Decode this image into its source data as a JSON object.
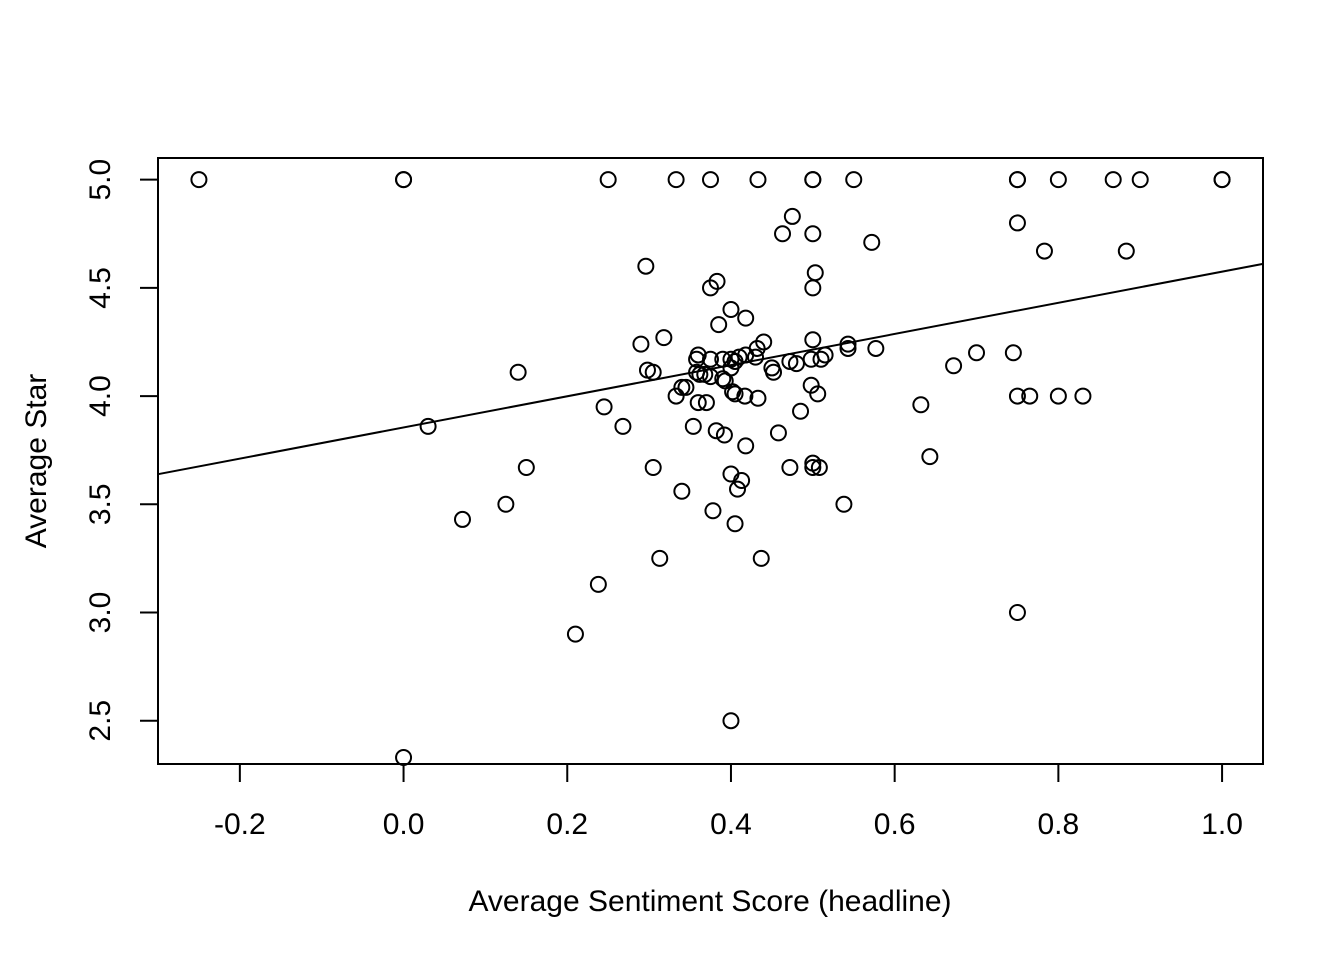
{
  "chart_data": {
    "type": "scatter",
    "title": "",
    "xlabel": "Average Sentiment Score (headline)",
    "ylabel": "Average Star",
    "xlim": [
      -0.3,
      1.05
    ],
    "ylim": [
      2.3,
      5.1
    ],
    "x_ticks": [
      -0.2,
      0.0,
      0.2,
      0.4,
      0.6,
      0.8,
      1.0
    ],
    "x_tick_labels": [
      "-0.2",
      "0.0",
      "0.2",
      "0.4",
      "0.6",
      "0.8",
      "1.0"
    ],
    "y_ticks": [
      2.5,
      3.0,
      3.5,
      4.0,
      4.5,
      5.0
    ],
    "y_tick_labels": [
      "2.5",
      "3.0",
      "3.5",
      "4.0",
      "4.5",
      "5.0"
    ],
    "grid": false,
    "legend": "none",
    "marker": "open-circle",
    "regression_line": {
      "intercept": 3.855,
      "slope": 0.72
    },
    "points": [
      [
        -0.25,
        5.0
      ],
      [
        0.0,
        5.0
      ],
      [
        0.0,
        5.0
      ],
      [
        0.25,
        5.0
      ],
      [
        0.333,
        5.0
      ],
      [
        0.375,
        5.0
      ],
      [
        0.433,
        5.0
      ],
      [
        0.5,
        5.0
      ],
      [
        0.5,
        5.0
      ],
      [
        0.55,
        5.0
      ],
      [
        0.75,
        5.0
      ],
      [
        0.75,
        5.0
      ],
      [
        0.8,
        5.0
      ],
      [
        0.867,
        5.0
      ],
      [
        0.9,
        5.0
      ],
      [
        1.0,
        5.0
      ],
      [
        1.0,
        5.0
      ],
      [
        0.475,
        4.83
      ],
      [
        0.75,
        4.8
      ],
      [
        0.463,
        4.75
      ],
      [
        0.5,
        4.75
      ],
      [
        0.572,
        4.71
      ],
      [
        0.783,
        4.67
      ],
      [
        0.883,
        4.67
      ],
      [
        0.296,
        4.6
      ],
      [
        0.503,
        4.57
      ],
      [
        0.383,
        4.53
      ],
      [
        0.375,
        4.5
      ],
      [
        0.5,
        4.5
      ],
      [
        0.4,
        4.4
      ],
      [
        0.418,
        4.36
      ],
      [
        0.385,
        4.33
      ],
      [
        0.318,
        4.27
      ],
      [
        0.5,
        4.26
      ],
      [
        0.29,
        4.24
      ],
      [
        0.44,
        4.25
      ],
      [
        0.543,
        4.24
      ],
      [
        0.432,
        4.22
      ],
      [
        0.543,
        4.22
      ],
      [
        0.577,
        4.22
      ],
      [
        0.7,
        4.2
      ],
      [
        0.745,
        4.2
      ],
      [
        0.36,
        4.19
      ],
      [
        0.418,
        4.19
      ],
      [
        0.515,
        4.19
      ],
      [
        0.41,
        4.18
      ],
      [
        0.43,
        4.18
      ],
      [
        0.358,
        4.17
      ],
      [
        0.375,
        4.17
      ],
      [
        0.39,
        4.17
      ],
      [
        0.4,
        4.17
      ],
      [
        0.498,
        4.17
      ],
      [
        0.51,
        4.17
      ],
      [
        0.405,
        4.16
      ],
      [
        0.472,
        4.16
      ],
      [
        0.48,
        4.15
      ],
      [
        0.672,
        4.14
      ],
      [
        0.4,
        4.13
      ],
      [
        0.45,
        4.13
      ],
      [
        0.298,
        4.12
      ],
      [
        0.14,
        4.11
      ],
      [
        0.305,
        4.11
      ],
      [
        0.358,
        4.11
      ],
      [
        0.362,
        4.1
      ],
      [
        0.452,
        4.11
      ],
      [
        0.368,
        4.1
      ],
      [
        0.375,
        4.09
      ],
      [
        0.39,
        4.08
      ],
      [
        0.393,
        4.07
      ],
      [
        0.34,
        4.04
      ],
      [
        0.345,
        4.04
      ],
      [
        0.498,
        4.05
      ],
      [
        0.402,
        4.02
      ],
      [
        0.405,
        4.01
      ],
      [
        0.506,
        4.01
      ],
      [
        0.333,
        4.0
      ],
      [
        0.417,
        4.0
      ],
      [
        0.75,
        4.0
      ],
      [
        0.765,
        4.0
      ],
      [
        0.8,
        4.0
      ],
      [
        0.83,
        4.0
      ],
      [
        0.433,
        3.99
      ],
      [
        0.36,
        3.97
      ],
      [
        0.37,
        3.97
      ],
      [
        0.632,
        3.96
      ],
      [
        0.245,
        3.95
      ],
      [
        0.485,
        3.93
      ],
      [
        0.03,
        3.86
      ],
      [
        0.268,
        3.86
      ],
      [
        0.354,
        3.86
      ],
      [
        0.382,
        3.84
      ],
      [
        0.458,
        3.83
      ],
      [
        0.392,
        3.82
      ],
      [
        0.418,
        3.77
      ],
      [
        0.643,
        3.72
      ],
      [
        0.5,
        3.69
      ],
      [
        0.15,
        3.67
      ],
      [
        0.305,
        3.67
      ],
      [
        0.472,
        3.67
      ],
      [
        0.5,
        3.67
      ],
      [
        0.508,
        3.67
      ],
      [
        0.4,
        3.64
      ],
      [
        0.413,
        3.61
      ],
      [
        0.408,
        3.57
      ],
      [
        0.34,
        3.56
      ],
      [
        0.125,
        3.5
      ],
      [
        0.538,
        3.5
      ],
      [
        0.378,
        3.47
      ],
      [
        0.072,
        3.43
      ],
      [
        0.405,
        3.41
      ],
      [
        0.313,
        3.25
      ],
      [
        0.437,
        3.25
      ],
      [
        0.238,
        3.13
      ],
      [
        0.75,
        3.0
      ],
      [
        0.21,
        2.9
      ],
      [
        0.4,
        2.5
      ],
      [
        0.0,
        2.33
      ]
    ]
  }
}
